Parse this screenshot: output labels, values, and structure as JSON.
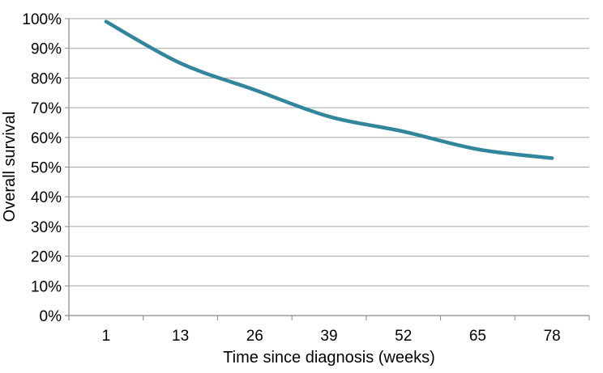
{
  "chart_data": {
    "type": "line",
    "title": "",
    "categories": [
      "1",
      "13",
      "26",
      "39",
      "52",
      "65",
      "78"
    ],
    "series": [
      {
        "name": "Overall survival",
        "values": [
          99,
          85,
          76,
          67,
          62,
          56,
          53
        ]
      }
    ],
    "xlabel": "Time since diagnosis (weeks)",
    "ylabel": "Overall survival",
    "ylim": [
      0,
      100
    ],
    "ytick_step": 10,
    "yticks": [
      "0%",
      "10%",
      "20%",
      "30%",
      "40%",
      "50%",
      "60%",
      "70%",
      "80%",
      "90%",
      "100%"
    ],
    "grid": "horizontal",
    "smooth": true,
    "legend": "none",
    "line_width": 4.5,
    "colors": {
      "line": "#31859C",
      "grid": "#A6A6A6",
      "axis": "#898989",
      "text": "#000000"
    }
  }
}
